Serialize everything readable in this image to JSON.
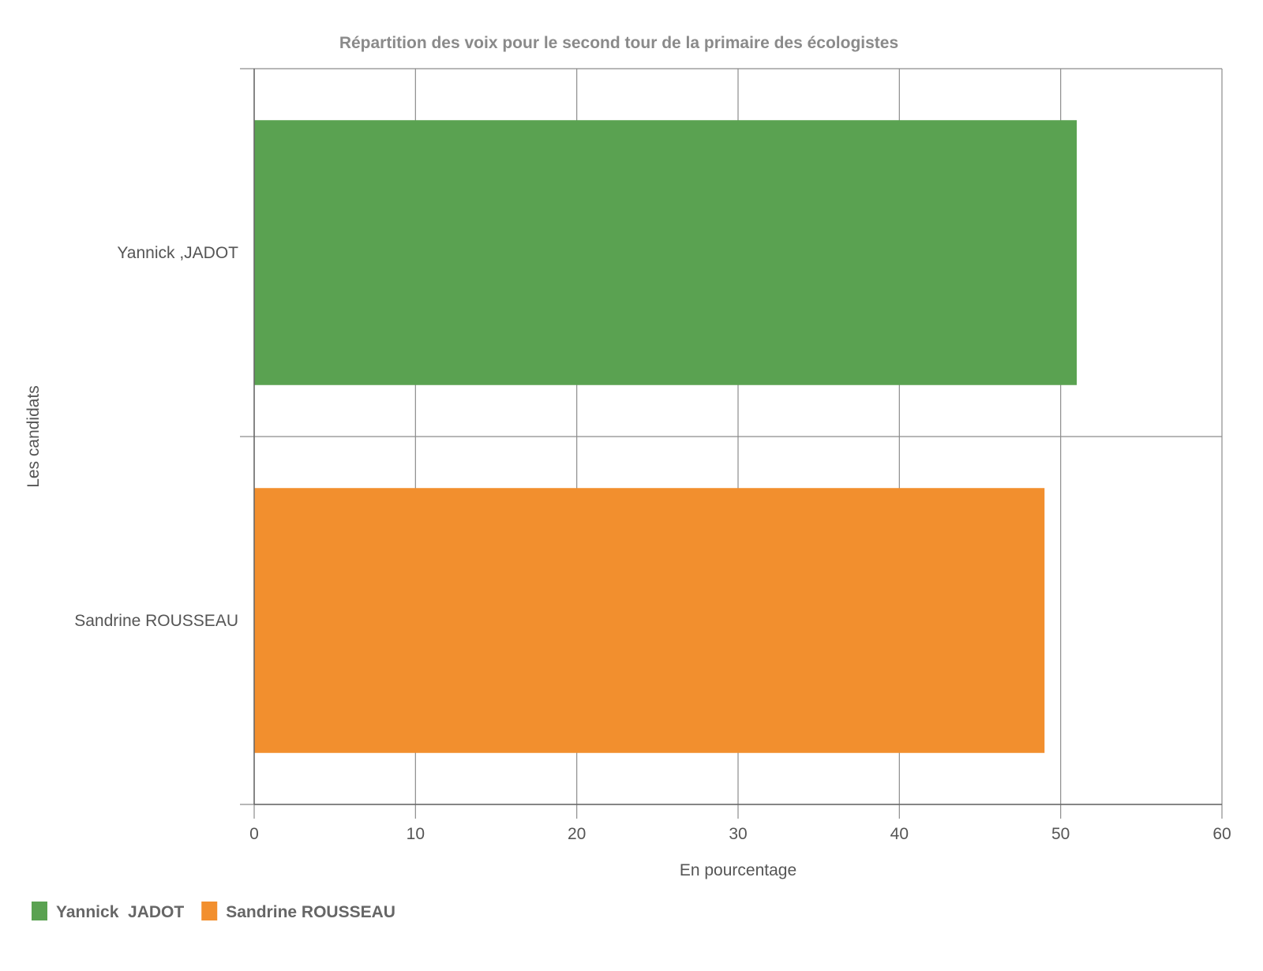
{
  "chart_data": {
    "type": "bar",
    "orientation": "horizontal",
    "title": "Répartition des voix pour le second tour de la primaire des écologistes",
    "xlabel": "En pourcentage",
    "ylabel": "Les candidats",
    "xlim": [
      0,
      60
    ],
    "x_ticks": [
      "0",
      "10",
      "20",
      "30",
      "40",
      "50",
      "60"
    ],
    "categories": [
      "Yannick ,JADOT",
      "Sandrine ROUSSEAU"
    ],
    "series": [
      {
        "name": "Yannick  JADOT",
        "values": [
          51,
          null
        ],
        "color": "#5aa251"
      },
      {
        "name": "Sandrine ROUSSEAU",
        "values": [
          null,
          49
        ],
        "color": "#f28f2e"
      }
    ],
    "grid": true,
    "grid_color": "#8c8c8c",
    "legend_position": "bottom-left"
  }
}
